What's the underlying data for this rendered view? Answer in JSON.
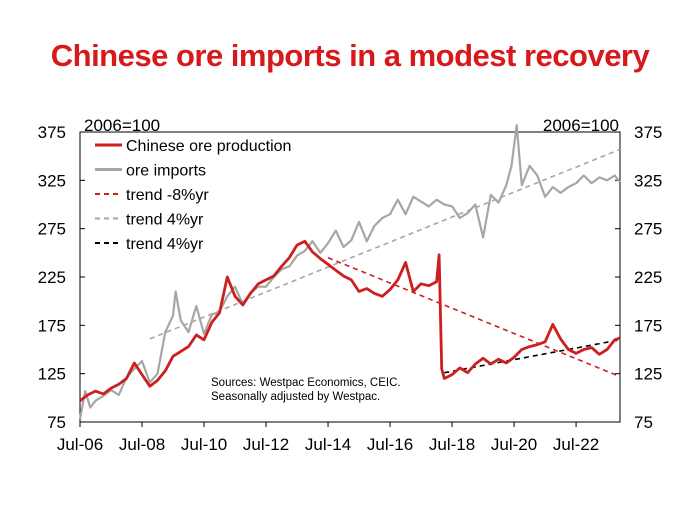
{
  "title": "Chinese ore imports in a modest recovery",
  "colors": {
    "title": "#d7191c",
    "production": "#cc1f1f",
    "imports": "#a6a6a6",
    "trend_black": "#000000"
  },
  "chart_data": {
    "type": "line",
    "left_axis_unit": "2006=100",
    "right_axis_unit": "2006=100",
    "x_ticks": [
      "Jul-06",
      "Jul-08",
      "Jul-10",
      "Jul-12",
      "Jul-14",
      "Jul-16",
      "Jul-18",
      "Jul-20",
      "Jul-22"
    ],
    "y_ticks": [
      75,
      125,
      175,
      225,
      275,
      325,
      375
    ],
    "ylim": [
      75,
      375
    ],
    "xlim": [
      "2006-07",
      "2023-12"
    ],
    "grid": false,
    "legend_position": "top-left",
    "source_note": [
      "Sources: Westpac Economics, CEIC.",
      "Seasonally adjusted by Westpac."
    ],
    "series": [
      {
        "name": "Chinese ore production",
        "style": "solid",
        "color": "#cc1f1f",
        "points": [
          [
            "2006-07",
            97
          ],
          [
            "2006-10",
            103
          ],
          [
            "2007-01",
            107
          ],
          [
            "2007-04",
            104
          ],
          [
            "2007-07",
            110
          ],
          [
            "2007-10",
            114
          ],
          [
            "2008-01",
            120
          ],
          [
            "2008-04",
            136
          ],
          [
            "2008-07",
            124
          ],
          [
            "2008-10",
            112
          ],
          [
            "2009-01",
            118
          ],
          [
            "2009-04",
            128
          ],
          [
            "2009-07",
            143
          ],
          [
            "2009-10",
            148
          ],
          [
            "2010-01",
            153
          ],
          [
            "2010-04",
            165
          ],
          [
            "2010-07",
            160
          ],
          [
            "2010-10",
            178
          ],
          [
            "2011-01",
            188
          ],
          [
            "2011-04",
            225
          ],
          [
            "2011-07",
            205
          ],
          [
            "2011-10",
            196
          ],
          [
            "2012-01",
            208
          ],
          [
            "2012-04",
            218
          ],
          [
            "2012-07",
            222
          ],
          [
            "2012-10",
            226
          ],
          [
            "2013-01",
            236
          ],
          [
            "2013-04",
            245
          ],
          [
            "2013-07",
            258
          ],
          [
            "2013-10",
            262
          ],
          [
            "2014-01",
            251
          ],
          [
            "2014-04",
            244
          ],
          [
            "2014-07",
            238
          ],
          [
            "2014-10",
            232
          ],
          [
            "2015-01",
            226
          ],
          [
            "2015-04",
            222
          ],
          [
            "2015-07",
            210
          ],
          [
            "2015-10",
            213
          ],
          [
            "2016-01",
            208
          ],
          [
            "2016-04",
            205
          ],
          [
            "2016-07",
            212
          ],
          [
            "2016-10",
            222
          ],
          [
            "2017-01",
            240
          ],
          [
            "2017-04",
            210
          ],
          [
            "2017-07",
            218
          ],
          [
            "2017-10",
            216
          ],
          [
            "2018-01",
            220
          ],
          [
            "2018-02",
            248
          ],
          [
            "2018-03",
            130
          ],
          [
            "2018-04",
            120
          ],
          [
            "2018-07",
            124
          ],
          [
            "2018-10",
            131
          ],
          [
            "2019-01",
            126
          ],
          [
            "2019-04",
            135
          ],
          [
            "2019-07",
            141
          ],
          [
            "2019-10",
            135
          ],
          [
            "2020-01",
            140
          ],
          [
            "2020-04",
            136
          ],
          [
            "2020-07",
            142
          ],
          [
            "2020-10",
            150
          ],
          [
            "2021-01",
            153
          ],
          [
            "2021-04",
            155
          ],
          [
            "2021-07",
            158
          ],
          [
            "2021-10",
            176
          ],
          [
            "2022-01",
            161
          ],
          [
            "2022-04",
            150
          ],
          [
            "2022-07",
            146
          ],
          [
            "2022-10",
            150
          ],
          [
            "2023-01",
            152
          ],
          [
            "2023-04",
            145
          ],
          [
            "2023-07",
            150
          ],
          [
            "2023-10",
            160
          ],
          [
            "2023-12",
            162
          ]
        ]
      },
      {
        "name": "ore imports",
        "style": "solid",
        "color": "#a6a6a6",
        "points": [
          [
            "2006-07",
            78
          ],
          [
            "2006-09",
            107
          ],
          [
            "2006-11",
            90
          ],
          [
            "2007-01",
            97
          ],
          [
            "2007-04",
            102
          ],
          [
            "2007-07",
            108
          ],
          [
            "2007-10",
            103
          ],
          [
            "2008-01",
            121
          ],
          [
            "2008-04",
            130
          ],
          [
            "2008-07",
            138
          ],
          [
            "2008-10",
            116
          ],
          [
            "2009-01",
            125
          ],
          [
            "2009-04",
            168
          ],
          [
            "2009-07",
            185
          ],
          [
            "2009-08",
            210
          ],
          [
            "2009-10",
            180
          ],
          [
            "2010-01",
            168
          ],
          [
            "2010-04",
            195
          ],
          [
            "2010-07",
            166
          ],
          [
            "2010-10",
            186
          ],
          [
            "2011-01",
            189
          ],
          [
            "2011-04",
            205
          ],
          [
            "2011-07",
            215
          ],
          [
            "2011-10",
            197
          ],
          [
            "2012-01",
            209
          ],
          [
            "2012-04",
            215
          ],
          [
            "2012-07",
            215
          ],
          [
            "2012-10",
            225
          ],
          [
            "2013-01",
            233
          ],
          [
            "2013-04",
            236
          ],
          [
            "2013-07",
            247
          ],
          [
            "2013-10",
            252
          ],
          [
            "2014-01",
            262
          ],
          [
            "2014-04",
            250
          ],
          [
            "2014-07",
            260
          ],
          [
            "2014-10",
            273
          ],
          [
            "2015-01",
            256
          ],
          [
            "2015-04",
            263
          ],
          [
            "2015-07",
            282
          ],
          [
            "2015-10",
            262
          ],
          [
            "2016-01",
            278
          ],
          [
            "2016-04",
            286
          ],
          [
            "2016-07",
            290
          ],
          [
            "2016-10",
            305
          ],
          [
            "2017-01",
            290
          ],
          [
            "2017-04",
            308
          ],
          [
            "2017-07",
            303
          ],
          [
            "2017-10",
            298
          ],
          [
            "2018-01",
            305
          ],
          [
            "2018-04",
            300
          ],
          [
            "2018-07",
            298
          ],
          [
            "2018-10",
            286
          ],
          [
            "2019-01",
            291
          ],
          [
            "2019-04",
            300
          ],
          [
            "2019-07",
            266
          ],
          [
            "2019-10",
            310
          ],
          [
            "2020-01",
            302
          ],
          [
            "2020-04",
            320
          ],
          [
            "2020-06",
            340
          ],
          [
            "2020-08",
            382
          ],
          [
            "2020-10",
            320
          ],
          [
            "2021-01",
            340
          ],
          [
            "2021-04",
            330
          ],
          [
            "2021-07",
            308
          ],
          [
            "2021-10",
            318
          ],
          [
            "2022-01",
            312
          ],
          [
            "2022-04",
            318
          ],
          [
            "2022-07",
            322
          ],
          [
            "2022-10",
            330
          ],
          [
            "2023-01",
            322
          ],
          [
            "2023-04",
            328
          ],
          [
            "2023-07",
            325
          ],
          [
            "2023-10",
            330
          ],
          [
            "2023-12",
            323
          ]
        ]
      },
      {
        "name": "trend -8%yr",
        "style": "dashed",
        "color": "#cc1f1f",
        "points": [
          [
            "2014-07",
            245
          ],
          [
            "2023-12",
            122
          ]
        ]
      },
      {
        "name": "trend 4%yr",
        "style": "dashed",
        "color": "#a6a6a6",
        "points": [
          [
            "2008-10",
            161
          ],
          [
            "2023-12",
            357
          ]
        ]
      },
      {
        "name": "trend 4%yr",
        "style": "dashed",
        "color": "#000000",
        "points": [
          [
            "2018-04",
            126
          ],
          [
            "2023-12",
            160
          ]
        ]
      }
    ]
  }
}
